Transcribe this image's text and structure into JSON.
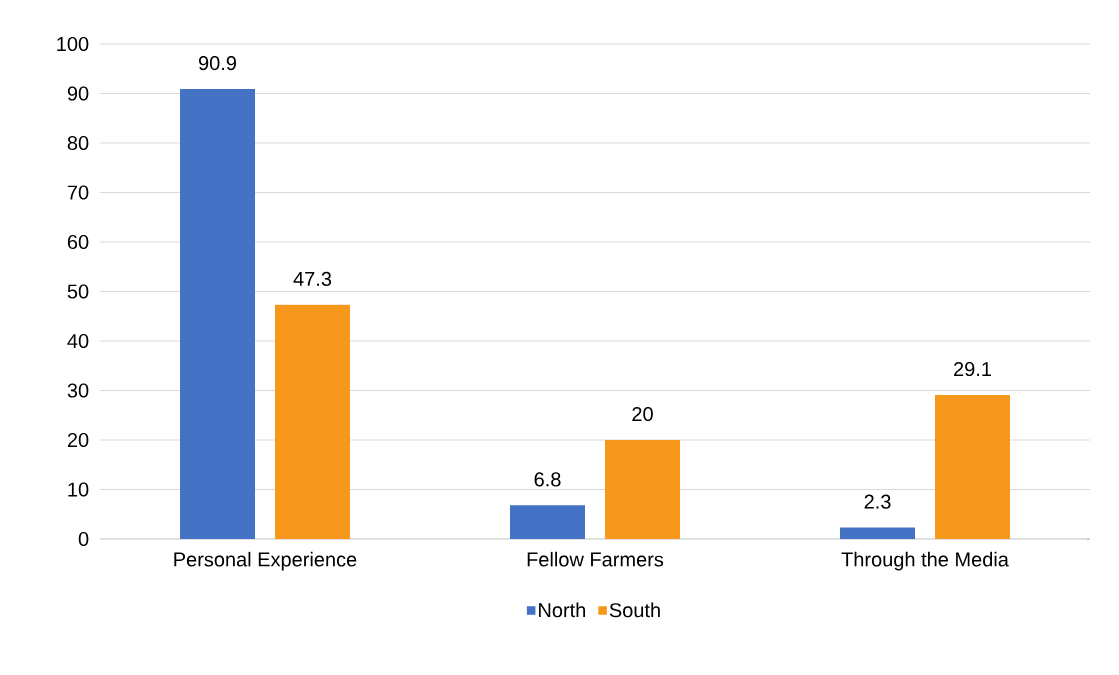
{
  "chart_data": {
    "type": "bar",
    "categories": [
      "Personal Experience",
      "Fellow   Farmers",
      "Through the Media"
    ],
    "series": [
      {
        "name": "North",
        "color": "#4472c4",
        "values": [
          90.9,
          6.8,
          2.3
        ]
      },
      {
        "name": "South",
        "color": "#f7981d",
        "values": [
          47.3,
          20,
          29.1
        ]
      }
    ],
    "ylim": [
      0,
      100
    ],
    "yticks": [
      0,
      10,
      20,
      30,
      40,
      50,
      60,
      70,
      80,
      90,
      100
    ],
    "grid": "y",
    "legend": "bottom",
    "data_labels": true
  }
}
